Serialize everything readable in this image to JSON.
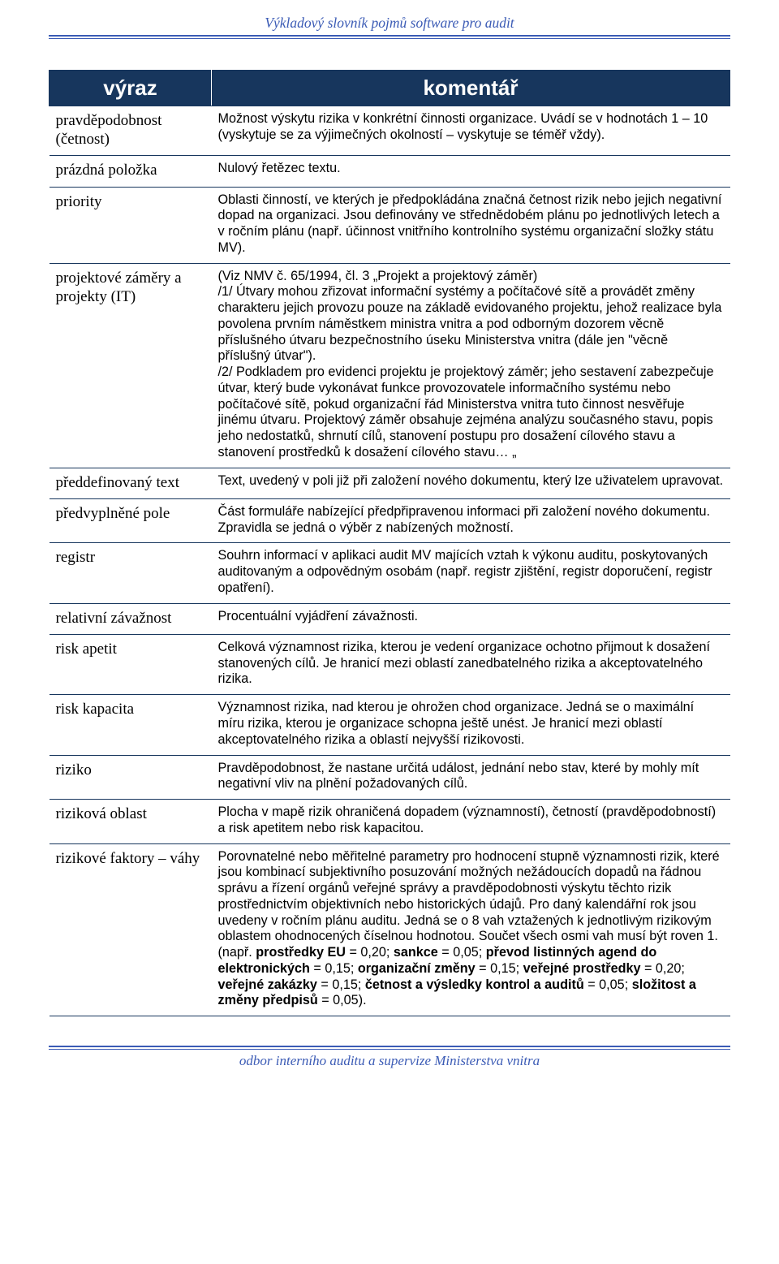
{
  "header": {
    "title": "Výkladový slovník pojmů software pro audit"
  },
  "table": {
    "headers": {
      "term": "výraz",
      "comment": "komentář"
    },
    "rows": [
      {
        "term": "pravděpodobnost (četnost)",
        "comment": "Možnost výskytu rizika v konkrétní činnosti organizace. Uvádí se v hodnotách 1 – 10 (vyskytuje se za výjimečných okolností – vyskytuje se téměř vždy)."
      },
      {
        "term": "prázdná položka",
        "comment": "Nulový řetězec textu."
      },
      {
        "term": "priority",
        "comment": "Oblasti činností, ve kterých je předpokládána značná četnost rizik nebo jejich negativní dopad na organizaci. Jsou definovány ve střednědobém plánu po jednotlivých letech a v ročním plánu (např. účinnost vnitřního kontrolního systému organizační složky státu MV)."
      },
      {
        "term": "projektové záměry a projekty (IT)",
        "comment": "(Viz NMV č. 65/1994, čl. 3 „Projekt a projektový záměr)\n/1/ Útvary mohou zřizovat informační systémy a počítačové sítě a provádět změny charakteru jejich provozu pouze na základě evidovaného projektu, jehož realizace byla povolena prvním náměstkem ministra vnitra a pod odborným dozorem věcně příslušného útvaru bezpečnostního úseku Ministerstva vnitra (dále jen \"věcně příslušný útvar\").\n/2/ Podkladem pro evidenci projektu je projektový záměr; jeho sestavení zabezpečuje útvar, který bude vykonávat funkce provozovatele informačního systému nebo počítačové sítě, pokud organizační řád Ministerstva vnitra tuto činnost nesvěřuje jinému útvaru. Projektový záměr obsahuje zejména analýzu současného stavu, popis jeho nedostatků, shrnutí cílů, stanovení postupu pro dosažení cílového stavu a stanovení prostředků k dosažení cílového stavu… „"
      },
      {
        "term": "předdefinovaný text",
        "comment": "Text, uvedený v poli již při založení nového dokumentu, který lze uživatelem upravovat."
      },
      {
        "term": "předvyplněné pole",
        "comment": "Část formuláře nabízející předpřipravenou informaci při založení nového dokumentu. Zpravidla se jedná o výběr z nabízených možností."
      },
      {
        "term": "registr",
        "comment": "Souhrn informací v aplikaci audit MV majících vztah k výkonu auditu, poskytovaných auditovaným a odpovědným osobám (např. registr zjištění, registr doporučení, registr opatření)."
      },
      {
        "term": "relativní závažnost",
        "comment": "Procentuální vyjádření závažnosti."
      },
      {
        "term": "risk apetit",
        "comment": "Celková významnost rizika, kterou je vedení organizace ochotno přijmout k dosažení stanovených cílů. Je hranicí mezi oblastí zanedbatelného rizika a akceptovatelného rizika."
      },
      {
        "term": "risk kapacita",
        "comment": "Významnost rizika, nad kterou je ohrožen chod organizace. Jedná se o maximální míru rizika, kterou je organizace schopna ještě unést. Je hranicí mezi oblastí akceptovatelného rizika a oblastí nejvyšší rizikovosti."
      },
      {
        "term": "riziko",
        "comment": "Pravděpodobnost, že nastane určitá událost, jednání nebo stav, které by mohly mít negativní vliv na plnění požadovaných cílů."
      },
      {
        "term": "riziková oblast",
        "comment": "Plocha v mapě rizik ohraničená dopadem (významností), četností (pravděpodobností) a risk apetitem nebo risk kapacitou."
      },
      {
        "term": "rizikové faktory – váhy",
        "comment_html": "Porovnatelné nebo měřitelné parametry pro hodnocení stupně významnosti rizik, které jsou kombinací subjektivního posuzování možných nežádoucích dopadů na řádnou správu a řízení orgánů veřejné správy a pravděpodobnosti výskytu těchto rizik prostřednictvím objektivních nebo historických údajů. Pro daný kalendářní rok jsou uvedeny v ročním plánu auditu. Jedná se o 8 vah vztažených k jednotlivým rizikovým oblastem ohodnocených číselnou hodnotou. Součet všech osmi vah musí být roven 1. (např. <b>prostředky EU</b> = 0,20; <b>sankce</b> = 0,05; <b>převod listinných agend do elektronických</b> = 0,15; <b>organizační změny</b> = 0,15; <b>veřejné prostředky</b> = 0,20; <b>veřejné zakázky</b> = 0,15; <b>četnost a výsledky kontrol a auditů</b> = 0,05; <b>složitost a změny předpisů</b> = 0,05)."
      }
    ]
  },
  "footer": {
    "text": "odbor interního auditu a supervize Ministerstva vnitra"
  },
  "colors": {
    "header_text": "#3b5bb5",
    "rule": "#3b5bb5",
    "th_bg": "#17365d",
    "th_text": "#ffffff",
    "body_text": "#000000",
    "page_bg": "#ffffff"
  }
}
